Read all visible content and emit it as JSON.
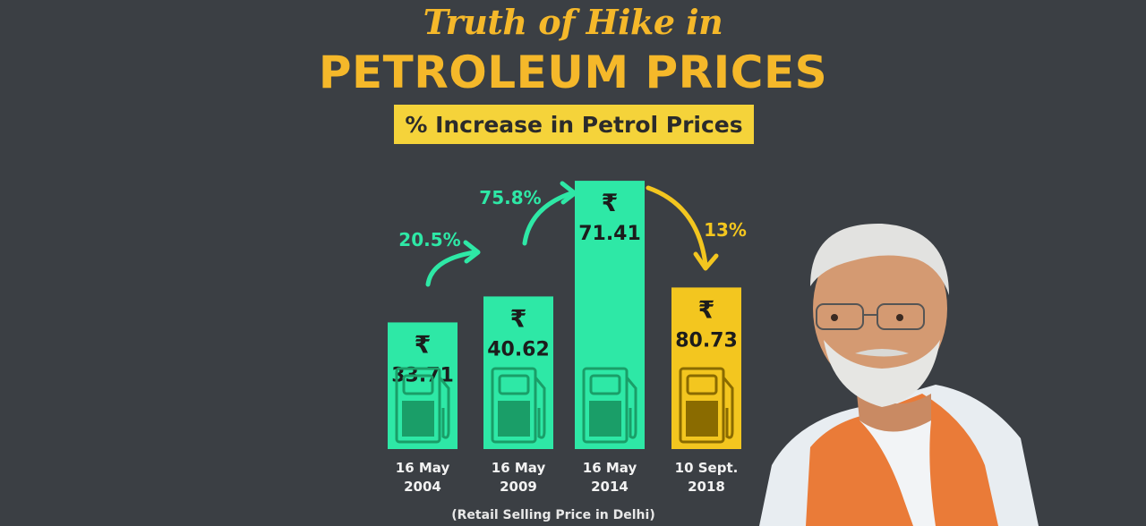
{
  "header": {
    "title_line1": "Truth of Hike in",
    "title_line2": "PETROLEUM PRICES",
    "subtitle": "% Increase in Petrol Prices"
  },
  "colors": {
    "background": "#3b3f44",
    "title": "#f5b82a",
    "subtitle_bg": "#f5d33a",
    "bar_green": "#2ee8a6",
    "bar_yellow": "#f3c61f",
    "arrow_green": "#2ee8a6",
    "arrow_yellow": "#f3c61f"
  },
  "chart_data": {
    "type": "bar",
    "title": "% Increase in Petrol Prices",
    "categories": [
      "16 May 2004",
      "16 May 2009",
      "16 May 2014",
      "10 Sept. 2018"
    ],
    "category_lines": [
      [
        "16 May",
        "2004"
      ],
      [
        "16 May",
        "2009"
      ],
      [
        "16 May",
        "2014"
      ],
      [
        "10 Sept.",
        "2018"
      ]
    ],
    "currency_symbol": "₹",
    "values": [
      33.71,
      40.62,
      71.41,
      80.73
    ],
    "value_labels": [
      "33.71",
      "40.62",
      "71.41",
      "80.73"
    ],
    "increases": [
      "20.5%",
      "75.8%",
      "13%"
    ],
    "bar_heights_shown": [
      33.71,
      40.62,
      71.41,
      43.0
    ],
    "footnote": "(Retail Selling Price in Delhi)"
  },
  "icons": {
    "bar_icon": "fuel-pump-icon",
    "portrait": "portrait-photo"
  }
}
